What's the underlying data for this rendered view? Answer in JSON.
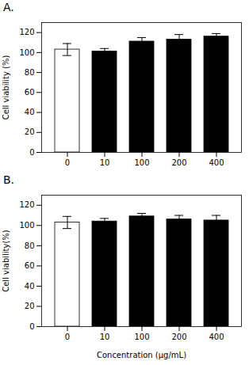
{
  "chart_data": [
    {
      "type": "bar",
      "title": "A.",
      "categories": [
        "0",
        "10",
        "100",
        "200",
        "400"
      ],
      "values": [
        103,
        101,
        111,
        113,
        116
      ],
      "errors": [
        6,
        3,
        4,
        5,
        3
      ],
      "colors": [
        "#ffffff",
        "#000000",
        "#000000",
        "#000000",
        "#000000"
      ],
      "ylabel": "Cell viability (%)",
      "ylim": [
        0,
        130
      ],
      "yticks": [
        0,
        20,
        40,
        60,
        80,
        100,
        120
      ],
      "grid": false
    },
    {
      "type": "bar",
      "title": "B.",
      "categories": [
        "0",
        "10",
        "100",
        "200",
        "400"
      ],
      "values": [
        103,
        104,
        109,
        106,
        105
      ],
      "errors": [
        6,
        3,
        3,
        4,
        5
      ],
      "colors": [
        "#ffffff",
        "#000000",
        "#000000",
        "#000000",
        "#000000"
      ],
      "ylabel": "Cell viability(%)",
      "xlabel": "Concentration (μg/mL)",
      "ylim": [
        0,
        130
      ],
      "yticks": [
        0,
        20,
        40,
        60,
        80,
        100,
        120
      ],
      "grid": false
    }
  ]
}
